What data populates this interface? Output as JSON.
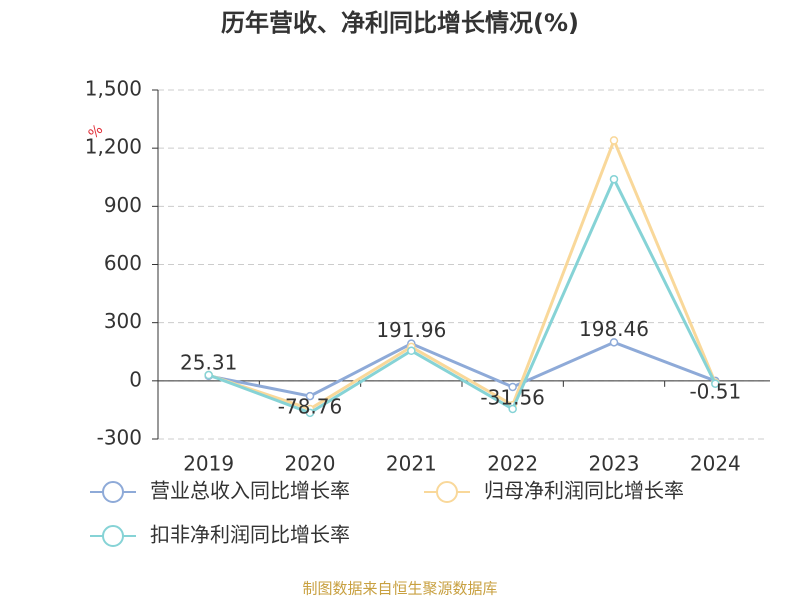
{
  "chart_data": {
    "type": "line",
    "title": "历年营收、净利同比增长情况(%)",
    "y_unit": "%",
    "categories": [
      "2019",
      "2020",
      "2021",
      "2022",
      "2023",
      "2024"
    ],
    "series": [
      {
        "name": "营业总收入同比增长率",
        "color": "#8eaad8",
        "values": [
          25.31,
          -78.76,
          191.96,
          -31.56,
          198.46,
          -0.51
        ],
        "labels": true
      },
      {
        "name": "归母净利润同比增长率",
        "color": "#f9d89a",
        "values": [
          30,
          -145,
          175,
          -125,
          1240,
          -10
        ]
      },
      {
        "name": "扣非净利润同比增长率",
        "color": "#86d3d6",
        "values": [
          30,
          -165,
          155,
          -145,
          1040,
          -15
        ]
      }
    ],
    "ylim": [
      -300,
      1500
    ],
    "yticks": [
      -300,
      0,
      300,
      600,
      900,
      {
        "value": 1200,
        "label": "1,200"
      },
      {
        "value": 1500,
        "label": "1,500"
      }
    ],
    "grid": true,
    "source": "制图数据来自恒生聚源数据库"
  }
}
